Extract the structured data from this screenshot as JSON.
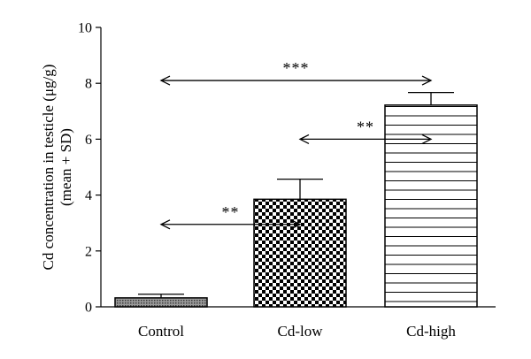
{
  "chart_data": {
    "type": "bar",
    "categories": [
      "Control",
      "Cd-low",
      "Cd-high"
    ],
    "values": [
      0.32,
      3.85,
      7.22
    ],
    "errors": [
      0.13,
      0.72,
      0.45
    ],
    "ylabel_lines": [
      "Cd concentration in testicle (μg/g)",
      "(mean + SD)"
    ],
    "ylim": [
      0,
      10
    ],
    "yticks": [
      0,
      2,
      4,
      6,
      8,
      10
    ],
    "ytick_labels": [
      "0",
      "2",
      "4",
      "6",
      "8",
      "10"
    ],
    "bar_patterns": [
      "dense-dots",
      "checkerboard",
      "horizontal-lines"
    ],
    "comparisons": [
      {
        "label": "***",
        "from": "Control",
        "to": "Cd-high",
        "y": 8.1
      },
      {
        "label": "**",
        "from": "Cd-low",
        "to": "Cd-high",
        "y": 6.0
      },
      {
        "label": "**",
        "from": "Control",
        "to": "Cd-low",
        "y": 2.95
      }
    ],
    "grid": false,
    "legend": "none"
  }
}
